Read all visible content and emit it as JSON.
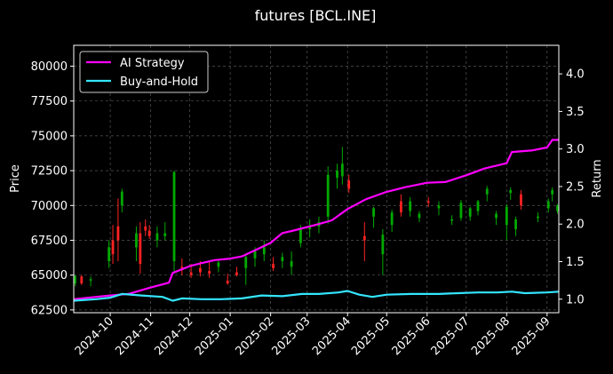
{
  "chart_data": {
    "type": "line",
    "title": "futures [BCL.INE]",
    "ylabel_left": "Price",
    "ylabel_right": "Return",
    "x_ticks": [
      "2024-10",
      "2024-11",
      "2024-12",
      "2025-01",
      "2025-02",
      "2025-03",
      "2025-04",
      "2025-05",
      "2025-06",
      "2025-07",
      "2025-08",
      "2025-09"
    ],
    "xlim": [
      "2024-09-03",
      "2025-09-10"
    ],
    "ylim_left": [
      62300,
      81500
    ],
    "yticks_left": [
      "62500",
      "65000",
      "67500",
      "70000",
      "72500",
      "75000",
      "77500",
      "80000"
    ],
    "ylim_right": [
      0.82,
      4.38
    ],
    "yticks_right": [
      "1.0",
      "1.5",
      "2.0",
      "2.5",
      "3.0",
      "3.5",
      "4.0"
    ],
    "grid": true,
    "legend_position": "top-left",
    "series": [
      {
        "name": "AI Strategy",
        "axis": "right",
        "color": "#ff00ff",
        "points": [
          [
            "2024-09-03",
            1.0
          ],
          [
            "2024-09-20",
            1.03
          ],
          [
            "2024-10-01",
            1.05
          ],
          [
            "2024-10-15",
            1.07
          ],
          [
            "2024-10-31",
            1.15
          ],
          [
            "2024-11-15",
            1.22
          ],
          [
            "2024-11-18",
            1.35
          ],
          [
            "2024-12-01",
            1.44
          ],
          [
            "2024-12-10",
            1.48
          ],
          [
            "2024-12-20",
            1.52
          ],
          [
            "2025-01-01",
            1.54
          ],
          [
            "2025-01-10",
            1.57
          ],
          [
            "2025-01-20",
            1.65
          ],
          [
            "2025-02-01",
            1.75
          ],
          [
            "2025-02-10",
            1.88
          ],
          [
            "2025-02-20",
            1.92
          ],
          [
            "2025-03-01",
            1.96
          ],
          [
            "2025-03-10",
            2.0
          ],
          [
            "2025-03-20",
            2.05
          ],
          [
            "2025-04-01",
            2.2
          ],
          [
            "2025-04-15",
            2.33
          ],
          [
            "2025-05-01",
            2.43
          ],
          [
            "2025-05-15",
            2.49
          ],
          [
            "2025-06-01",
            2.55
          ],
          [
            "2025-06-15",
            2.56
          ],
          [
            "2025-07-01",
            2.65
          ],
          [
            "2025-07-15",
            2.74
          ],
          [
            "2025-08-01",
            2.81
          ],
          [
            "2025-08-05",
            2.96
          ],
          [
            "2025-08-20",
            2.98
          ],
          [
            "2025-09-01",
            3.02
          ],
          [
            "2025-09-05",
            3.12
          ],
          [
            "2025-09-10",
            3.12
          ]
        ]
      },
      {
        "name": "Buy-and-Hold",
        "axis": "right",
        "color": "#33e6ff",
        "points": [
          [
            "2024-09-03",
            0.98
          ],
          [
            "2024-09-20",
            1.0
          ],
          [
            "2024-10-01",
            1.02
          ],
          [
            "2024-10-10",
            1.07
          ],
          [
            "2024-10-25",
            1.05
          ],
          [
            "2024-11-10",
            1.03
          ],
          [
            "2024-11-18",
            0.98
          ],
          [
            "2024-11-25",
            1.01
          ],
          [
            "2024-12-10",
            1.0
          ],
          [
            "2024-12-25",
            1.0
          ],
          [
            "2025-01-10",
            1.01
          ],
          [
            "2025-01-25",
            1.05
          ],
          [
            "2025-02-10",
            1.04
          ],
          [
            "2025-02-25",
            1.07
          ],
          [
            "2025-03-10",
            1.07
          ],
          [
            "2025-03-25",
            1.09
          ],
          [
            "2025-04-01",
            1.11
          ],
          [
            "2025-04-10",
            1.06
          ],
          [
            "2025-04-20",
            1.03
          ],
          [
            "2025-05-01",
            1.06
          ],
          [
            "2025-05-20",
            1.07
          ],
          [
            "2025-06-10",
            1.07
          ],
          [
            "2025-06-25",
            1.08
          ],
          [
            "2025-07-10",
            1.09
          ],
          [
            "2025-07-25",
            1.09
          ],
          [
            "2025-08-05",
            1.1
          ],
          [
            "2025-08-15",
            1.08
          ],
          [
            "2025-09-01",
            1.09
          ],
          [
            "2025-09-10",
            1.1
          ]
        ]
      }
    ],
    "candles": [
      [
        "2024-09-04",
        64400,
        65000,
        64200,
        64950
      ],
      [
        "2024-09-09",
        64900,
        65000,
        64300,
        64400
      ],
      [
        "2024-09-16",
        64600,
        64900,
        64200,
        64700
      ],
      [
        "2024-09-30",
        66000,
        67500,
        65500,
        67000
      ],
      [
        "2024-10-03",
        67500,
        68600,
        65800,
        66500
      ],
      [
        "2024-10-07",
        68500,
        70500,
        66000,
        67500
      ],
      [
        "2024-10-10",
        70000,
        71200,
        69500,
        71000
      ],
      [
        "2024-10-21",
        67000,
        68500,
        66000,
        68000
      ],
      [
        "2024-10-24",
        68000,
        68800,
        65100,
        65800
      ],
      [
        "2024-10-28",
        68500,
        69000,
        67800,
        68200
      ],
      [
        "2024-10-31",
        68200,
        68600,
        67600,
        67800
      ],
      [
        "2024-11-06",
        67500,
        68500,
        67000,
        68000
      ],
      [
        "2024-11-12",
        67800,
        68800,
        67500,
        68000
      ],
      [
        "2024-11-19",
        66000,
        72500,
        65200,
        72400
      ],
      [
        "2024-11-25",
        65600,
        66200,
        65000,
        65500
      ],
      [
        "2024-12-02",
        65200,
        65800,
        64800,
        65000
      ],
      [
        "2024-12-09",
        65500,
        66000,
        64900,
        65200
      ],
      [
        "2024-12-16",
        65300,
        66000,
        64800,
        65100
      ],
      [
        "2024-12-23",
        65600,
        66100,
        65200,
        65900
      ],
      [
        "2024-12-30",
        64600,
        65100,
        64300,
        64400
      ],
      [
        "2025-01-06",
        65200,
        65600,
        64900,
        65000
      ],
      [
        "2025-01-13",
        65500,
        66500,
        64300,
        66300
      ],
      [
        "2025-01-20",
        66200,
        67000,
        65600,
        66800
      ],
      [
        "2025-01-27",
        66500,
        67500,
        66000,
        67000
      ],
      [
        "2025-02-03",
        65800,
        66300,
        65300,
        65500
      ],
      [
        "2025-02-10",
        66000,
        66600,
        65500,
        66300
      ],
      [
        "2025-02-17",
        65600,
        66700,
        65000,
        66000
      ],
      [
        "2025-02-24",
        67300,
        68600,
        67000,
        68400
      ],
      [
        "2025-03-03",
        68300,
        69000,
        67700,
        68500
      ],
      [
        "2025-03-10",
        68500,
        69200,
        68000,
        68800
      ],
      [
        "2025-03-17",
        69200,
        72800,
        68700,
        72200
      ],
      [
        "2025-03-24",
        72000,
        73000,
        71200,
        72500
      ],
      [
        "2025-03-28",
        72100,
        74200,
        71500,
        73000
      ],
      [
        "2025-04-02",
        71800,
        72200,
        70900,
        71200
      ],
      [
        "2025-04-14",
        67800,
        68800,
        66000,
        67500
      ],
      [
        "2025-04-21",
        69200,
        69900,
        68400,
        69800
      ],
      [
        "2025-04-28",
        66500,
        68300,
        65000,
        67900
      ],
      [
        "2025-05-05",
        68600,
        69700,
        68100,
        69500
      ],
      [
        "2025-05-12",
        70300,
        70800,
        69200,
        69500
      ],
      [
        "2025-05-19",
        69600,
        70600,
        69200,
        70300
      ],
      [
        "2025-05-26",
        69100,
        69600,
        68800,
        69400
      ],
      [
        "2025-06-02",
        70300,
        70600,
        69900,
        70200
      ],
      [
        "2025-06-10",
        69800,
        70300,
        69300,
        70000
      ],
      [
        "2025-06-20",
        68900,
        69300,
        68600,
        69000
      ],
      [
        "2025-06-27",
        69100,
        70400,
        68900,
        70200
      ],
      [
        "2025-07-04",
        69200,
        69900,
        68900,
        69800
      ],
      [
        "2025-07-10",
        69600,
        70400,
        69300,
        70300
      ],
      [
        "2025-07-17",
        70800,
        71400,
        70300,
        71200
      ],
      [
        "2025-07-24",
        69100,
        69600,
        68600,
        69400
      ],
      [
        "2025-08-01",
        68600,
        70100,
        67500,
        69900
      ],
      [
        "2025-08-04",
        70900,
        71300,
        70400,
        71100
      ],
      [
        "2025-08-08",
        68300,
        69200,
        67800,
        69000
      ],
      [
        "2025-08-12",
        70800,
        71100,
        69700,
        70000
      ],
      [
        "2025-08-25",
        69100,
        69500,
        68800,
        69200
      ],
      [
        "2025-09-02",
        69800,
        70500,
        69500,
        70300
      ],
      [
        "2025-09-05",
        70800,
        71300,
        70300,
        71100
      ],
      [
        "2025-09-09",
        69600,
        70100,
        69400,
        70000
      ]
    ],
    "candle_colors": {
      "up": "#00aa00",
      "down": "#ff2222"
    }
  }
}
